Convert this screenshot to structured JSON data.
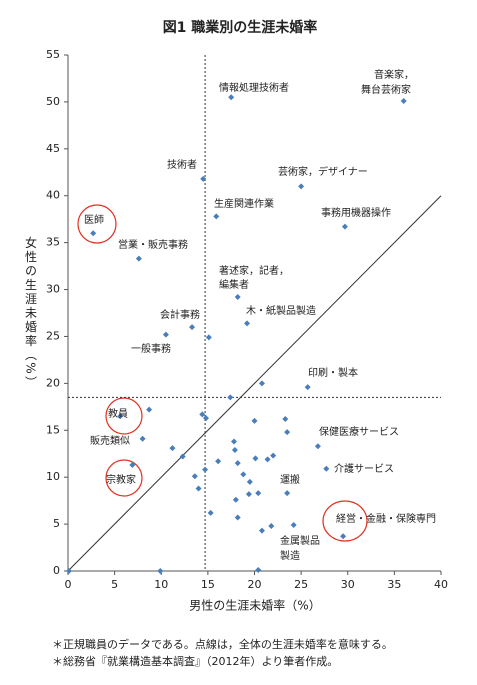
{
  "chart_data": {
    "type": "scatter",
    "title": "図1 職業別の生涯未婚率",
    "x_label": "男性の生涯未婚率（%）",
    "y_label": "女性の生涯未婚率（%）",
    "notes": [
      "＊正規職員のデータである。点線は，全体の生涯未婚率を意味する。",
      "＊総務省『就業構造基本調査』（2012年）より筆者作成。"
    ],
    "xlim": [
      0,
      40
    ],
    "xticks": [
      0,
      5,
      10,
      15,
      20,
      25,
      30,
      35,
      40
    ],
    "ylim": [
      0,
      55
    ],
    "yticks": [
      0,
      5,
      10,
      15,
      20,
      25,
      30,
      35,
      40,
      45,
      50,
      55
    ],
    "reference_x": 14.7,
    "reference_y": 18.5,
    "color": "#4a7ebb",
    "x": [
      17.5,
      36.0,
      14.5,
      25.0,
      15.9,
      29.7,
      2.7,
      7.6,
      18.2,
      19.2,
      13.3,
      10.5,
      15.1,
      25.7,
      20.8,
      17.4,
      5.6,
      8.7,
      8.0,
      11.2,
      12.3,
      14.4,
      14.8,
      17.8,
      17.9,
      20.0,
      23.3,
      23.5,
      26.8,
      16.1,
      18.2,
      20.1,
      21.4,
      22.0,
      13.6,
      14.7,
      18.8,
      19.5,
      19.4,
      20.4,
      23.5,
      27.7,
      6.9,
      14.0,
      18.0,
      15.3,
      18.2,
      21.8,
      24.2,
      20.8,
      29.5,
      0.1,
      9.9,
      20.4
    ],
    "values": [
      50.5,
      50.1,
      41.8,
      41.0,
      37.8,
      36.7,
      36.0,
      33.3,
      29.2,
      26.4,
      26.0,
      25.2,
      24.9,
      19.6,
      20.0,
      18.5,
      16.5,
      17.2,
      14.1,
      13.1,
      12.2,
      16.7,
      16.3,
      13.8,
      12.9,
      16.0,
      16.2,
      14.8,
      13.3,
      11.7,
      11.5,
      12.0,
      11.9,
      12.3,
      10.1,
      10.8,
      10.3,
      9.5,
      8.2,
      8.3,
      8.3,
      10.9,
      11.3,
      8.8,
      7.6,
      6.2,
      5.7,
      4.8,
      4.9,
      4.3,
      3.7,
      0.0,
      0.0,
      0.1
    ],
    "annotations": [
      "情報処理技術者",
      "音楽家，",
      "舞台芸術家",
      "技術者",
      "芸術家，デザイナー",
      "生産関連作業",
      "事務用機器操作",
      "医師",
      "営業・販売事務",
      "著述家，記者，",
      "編集者",
      "木・紙製品製造",
      "会計事務",
      "一般事務",
      "印刷・製本",
      "教員",
      "販売類似",
      "保健医療サービス",
      "介護サービス",
      "宗教家",
      "運搬",
      "経営・金融・保険専門",
      "金属製品",
      "製造"
    ]
  }
}
